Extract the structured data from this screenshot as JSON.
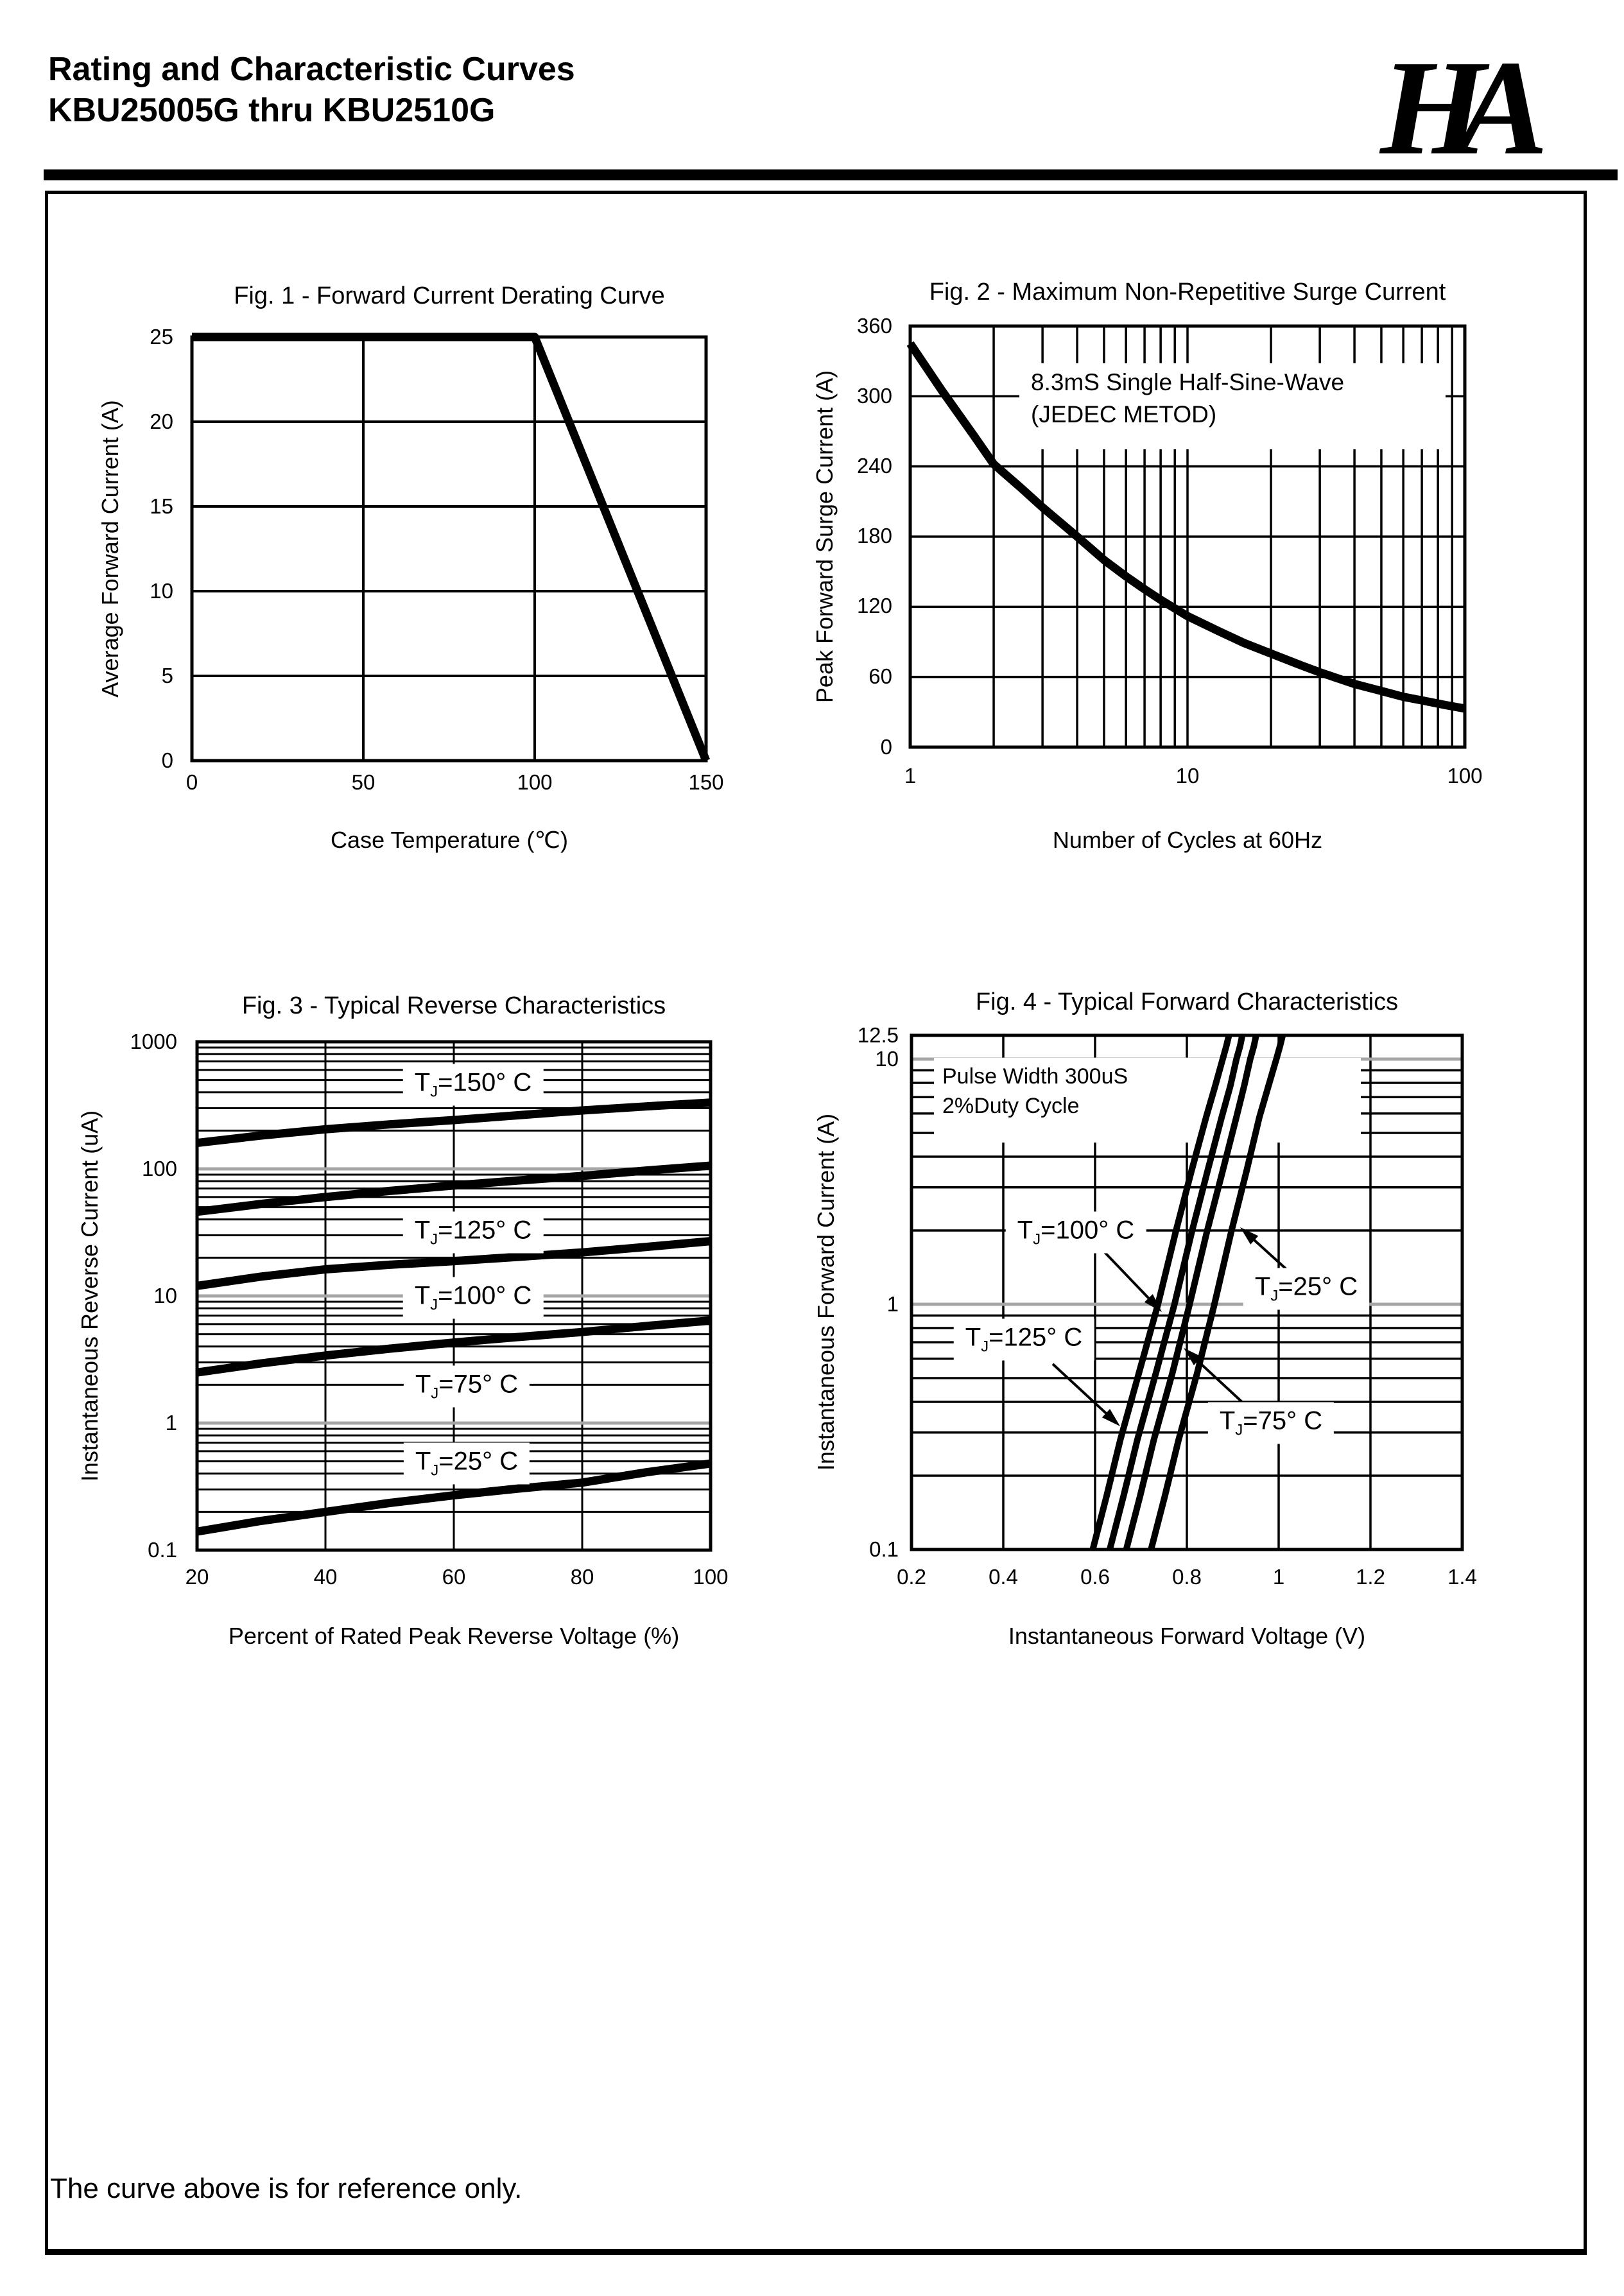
{
  "page": {
    "header": {
      "title_line1": "Rating and Characteristic Curves",
      "title_line2": "KBU25005G thru KBU2510G",
      "logo_text": "HA"
    },
    "footer_note": "The curve above is for reference only."
  },
  "colors": {
    "ink": "#000000",
    "gray_gridline": "#a6a6a6",
    "background": "#ffffff"
  },
  "chart_data": [
    {
      "id": "fig1",
      "type": "line",
      "title": "Fig. 1 - Forward Current Derating Curve",
      "xlabel": "Case Temperature (℃)",
      "ylabel": "Average Forward Current (A)",
      "xscale": "linear",
      "xlim": [
        0,
        150
      ],
      "yscale": "linear",
      "ylim": [
        0,
        25
      ],
      "xticks": [
        "0",
        "50",
        "100",
        "150"
      ],
      "yticks": [
        "25",
        "20",
        "15",
        "10",
        "5",
        "0"
      ],
      "series": [
        {
          "name": "max-average-forward-current",
          "points": [
            [
              0,
              25
            ],
            [
              100,
              25
            ],
            [
              150,
              0
            ]
          ]
        }
      ]
    },
    {
      "id": "fig2",
      "type": "line",
      "title": "Fig. 2 - Maximum Non-Repetitive Surge Current",
      "xlabel": "Number of Cycles at 60Hz",
      "ylabel": "Peak Forward Surge Current (A)",
      "xscale": "log",
      "xlim": [
        1,
        100
      ],
      "yscale": "linear",
      "ylim": [
        0,
        360
      ],
      "xticks": [
        "1",
        "10",
        "100"
      ],
      "yticks": [
        "360",
        "300",
        "240",
        "180",
        "120",
        "60",
        "0"
      ],
      "annotation": {
        "line1": "8.3mS Single Half-Sine-Wave",
        "line2": "(JEDEC METOD)"
      },
      "series": [
        {
          "name": "peak-surge-current",
          "points": [
            [
              1,
              345
            ],
            [
              1.3,
              305
            ],
            [
              1.7,
              266
            ],
            [
              2,
              242
            ],
            [
              2.5,
              222
            ],
            [
              3,
              205
            ],
            [
              4,
              180
            ],
            [
              5,
              160
            ],
            [
              6,
              146
            ],
            [
              7,
              135
            ],
            [
              8,
              126
            ],
            [
              10,
              112
            ],
            [
              13,
              99
            ],
            [
              16,
              89
            ],
            [
              20,
              80
            ],
            [
              25,
              71
            ],
            [
              30,
              64
            ],
            [
              40,
              54
            ],
            [
              50,
              48
            ],
            [
              60,
              43
            ],
            [
              70,
              40
            ],
            [
              85,
              36
            ],
            [
              100,
              33
            ]
          ]
        }
      ]
    },
    {
      "id": "fig3",
      "type": "line",
      "title": "Fig. 3 - Typical Reverse Characteristics",
      "xlabel": "Percent of Rated Peak Reverse Voltage (%)",
      "ylabel": "Instantaneous Reverse Current (uA)",
      "xscale": "linear",
      "xlim": [
        20,
        100
      ],
      "yscale": "log",
      "ylim": [
        0.1,
        1000
      ],
      "xticks": [
        "20",
        "40",
        "60",
        "80",
        "100"
      ],
      "yticks": [
        "1000",
        "100",
        "10",
        "1",
        "0.1"
      ],
      "curve_labels": [
        {
          "pre": "T",
          "sub": "J",
          "post": "=150° C"
        },
        {
          "pre": "T",
          "sub": "J",
          "post": "=125° C"
        },
        {
          "pre": "T",
          "sub": "J",
          "post": "=100° C"
        },
        {
          "pre": "T",
          "sub": "J",
          "post": "=75° C"
        },
        {
          "pre": "T",
          "sub": "J",
          "post": "=25° C"
        }
      ],
      "series": [
        {
          "name": "TJ=150C",
          "points": [
            [
              20,
              160
            ],
            [
              30,
              183
            ],
            [
              40,
              205
            ],
            [
              50,
              224
            ],
            [
              60,
              242
            ],
            [
              70,
              264
            ],
            [
              80,
              288
            ],
            [
              90,
              310
            ],
            [
              100,
              332
            ]
          ]
        },
        {
          "name": "TJ=125C",
          "points": [
            [
              20,
              46
            ],
            [
              30,
              53
            ],
            [
              40,
              60
            ],
            [
              50,
              67
            ],
            [
              60,
              74
            ],
            [
              70,
              81
            ],
            [
              80,
              88
            ],
            [
              90,
              97
            ],
            [
              100,
              106
            ]
          ]
        },
        {
          "name": "TJ=100C",
          "points": [
            [
              20,
              12
            ],
            [
              30,
              14.2
            ],
            [
              40,
              16.2
            ],
            [
              50,
              17.6
            ],
            [
              60,
              18.8
            ],
            [
              70,
              20.3
            ],
            [
              80,
              22
            ],
            [
              90,
              24.3
            ],
            [
              100,
              27
            ]
          ]
        },
        {
          "name": "TJ=75C",
          "points": [
            [
              20,
              2.5
            ],
            [
              30,
              2.95
            ],
            [
              40,
              3.4
            ],
            [
              50,
              3.85
            ],
            [
              60,
              4.3
            ],
            [
              70,
              4.75
            ],
            [
              80,
              5.2
            ],
            [
              90,
              5.8
            ],
            [
              100,
              6.4
            ]
          ]
        },
        {
          "name": "TJ=25C",
          "points": [
            [
              20,
              0.14
            ],
            [
              30,
              0.17
            ],
            [
              40,
              0.2
            ],
            [
              50,
              0.235
            ],
            [
              60,
              0.27
            ],
            [
              70,
              0.305
            ],
            [
              80,
              0.34
            ],
            [
              90,
              0.41
            ],
            [
              100,
              0.48
            ]
          ]
        }
      ]
    },
    {
      "id": "fig4",
      "type": "line",
      "title": "Fig. 4 - Typical Forward Characteristics",
      "xlabel": "Instantaneous Forward Voltage (V)",
      "ylabel": "Instantaneous Forward Current (A)",
      "xscale": "linear",
      "xlim": [
        0.2,
        1.4
      ],
      "yscale": "log",
      "ylim": [
        0.1,
        12.5
      ],
      "xticks": [
        "0.2",
        "0.4",
        "0.6",
        "0.8",
        "1",
        "1.2",
        "1.4"
      ],
      "yticks": [
        "12.5",
        "10",
        "1",
        "0.1"
      ],
      "annotation": {
        "line1": "Pulse Width 300uS",
        "line2": "2%Duty Cycle"
      },
      "curve_labels": [
        {
          "pre": "T",
          "sub": "J",
          "post": "=100° C"
        },
        {
          "pre": "T",
          "sub": "J",
          "post": "=25° C"
        },
        {
          "pre": "T",
          "sub": "J",
          "post": "=125° C"
        },
        {
          "pre": "T",
          "sub": "J",
          "post": "=75° C"
        }
      ],
      "series": [
        {
          "name": "TJ=125C",
          "points": [
            [
              0.595,
              0.1
            ],
            [
              0.625,
              0.165
            ],
            [
              0.655,
              0.28
            ],
            [
              0.695,
              0.52
            ],
            [
              0.737,
              1.0
            ],
            [
              0.775,
              1.95
            ],
            [
              0.81,
              3.5
            ],
            [
              0.842,
              5.8
            ],
            [
              0.862,
              7.8
            ],
            [
              0.878,
              10
            ],
            [
              0.886,
              11.3
            ],
            [
              0.893,
              12.8
            ]
          ]
        },
        {
          "name": "TJ=100C",
          "points": [
            [
              0.632,
              0.1
            ],
            [
              0.662,
              0.165
            ],
            [
              0.692,
              0.28
            ],
            [
              0.732,
              0.52
            ],
            [
              0.773,
              1.0
            ],
            [
              0.81,
              1.95
            ],
            [
              0.845,
              3.5
            ],
            [
              0.876,
              5.8
            ],
            [
              0.895,
              7.8
            ],
            [
              0.908,
              10
            ],
            [
              0.916,
              11.3
            ],
            [
              0.922,
              12.8
            ]
          ]
        },
        {
          "name": "TJ=75C",
          "points": [
            [
              0.668,
              0.1
            ],
            [
              0.698,
              0.165
            ],
            [
              0.728,
              0.28
            ],
            [
              0.768,
              0.52
            ],
            [
              0.806,
              1.0
            ],
            [
              0.843,
              1.95
            ],
            [
              0.878,
              3.5
            ],
            [
              0.908,
              5.8
            ],
            [
              0.925,
              7.8
            ],
            [
              0.938,
              10
            ],
            [
              0.946,
              11.3
            ],
            [
              0.952,
              12.8
            ]
          ]
        },
        {
          "name": "TJ=25C",
          "points": [
            [
              0.722,
              0.1
            ],
            [
              0.752,
              0.165
            ],
            [
              0.782,
              0.28
            ],
            [
              0.822,
              0.52
            ],
            [
              0.86,
              1.0
            ],
            [
              0.896,
              1.95
            ],
            [
              0.93,
              3.5
            ],
            [
              0.958,
              5.8
            ],
            [
              0.978,
              7.8
            ],
            [
              0.995,
              10
            ],
            [
              1.003,
              11.3
            ],
            [
              1.01,
              12.8
            ]
          ]
        }
      ]
    }
  ]
}
